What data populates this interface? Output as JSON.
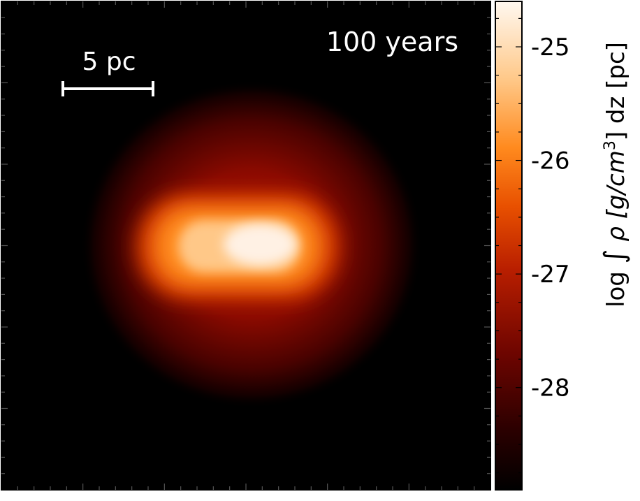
{
  "chart_data": {
    "type": "heatmap",
    "title": "100 years",
    "scalebar_label": "5 pc",
    "colorbar": {
      "label_parts": [
        "log ",
        "∫",
        " ρ  [g/cm",
        "3",
        "]  dz  [pc]"
      ],
      "ticks": [
        -25,
        -26,
        -27,
        -28
      ],
      "tick_labels": [
        "-25",
        "-26",
        "-27",
        "-28"
      ],
      "range": [
        -28.9,
        -24.6
      ],
      "colormap": [
        "#000000",
        "#3a0000",
        "#8b0a00",
        "#d23a00",
        "#ff7a10",
        "#ffb35c",
        "#ffe9d2",
        "#fff8f0"
      ]
    },
    "xlabel": "",
    "ylabel": "",
    "grid": false
  },
  "colors": {
    "background": "#000000",
    "annotation": "#ffffff",
    "frame": "#000000"
  }
}
